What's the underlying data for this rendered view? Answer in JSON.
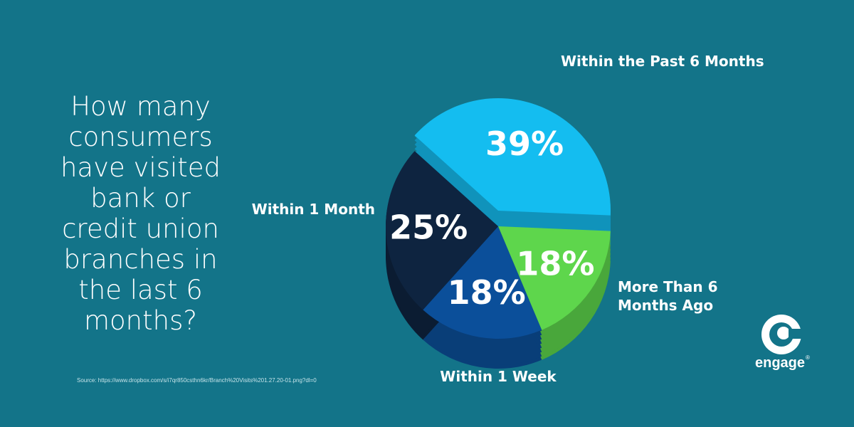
{
  "chart_data": {
    "type": "pie",
    "title": "How many consumers have visited bank or credit union branches in the last 6 months?",
    "categories": [
      "Within the Past 6 Months",
      "More Than 6 Months Ago",
      "Within 1 Week",
      "Within 1 Month"
    ],
    "values": [
      39,
      18,
      18,
      25
    ],
    "value_labels": [
      "39%",
      "18%",
      "18%",
      "25%"
    ],
    "colors": [
      "#14bdf0",
      "#5ed64c",
      "#0b4f9a",
      "#0e2440"
    ],
    "source": "Source: https://www.dropbox.com/s/i7qr850csthn6kr/Branch%20Visits%201.27.20-01.png?dl=0"
  },
  "logo": {
    "text": "engage",
    "mark": "®"
  }
}
